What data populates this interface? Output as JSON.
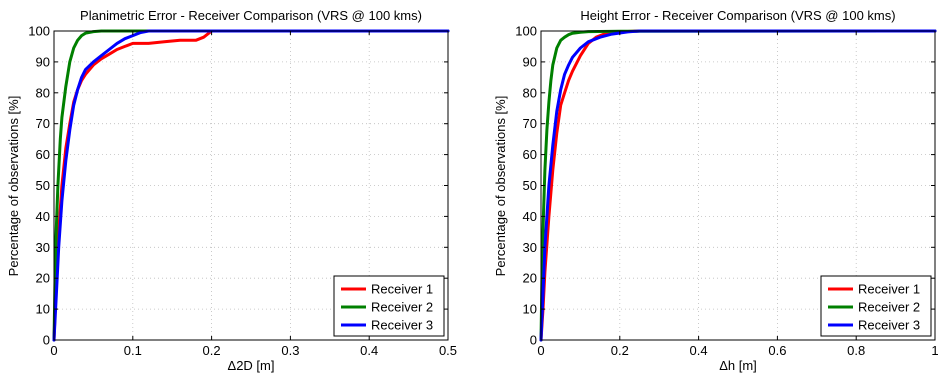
{
  "chart_data": [
    {
      "type": "line",
      "title": "Planimetric Error - Receiver Comparison (VRS @ 100 kms)",
      "xlabel": "Δ2D [m]",
      "ylabel": "Percentage of observations [%]",
      "xlim": [
        0,
        0.5
      ],
      "ylim": [
        0,
        100
      ],
      "xticks": [
        0,
        0.1,
        0.2,
        0.3,
        0.4,
        0.5
      ],
      "xtick_labels": [
        "0",
        "0.1",
        "0.2",
        "0.3",
        "0.4",
        "0.5"
      ],
      "yticks": [
        0,
        10,
        20,
        30,
        40,
        50,
        60,
        70,
        80,
        90,
        100
      ],
      "ytick_labels": [
        "0",
        "10",
        "20",
        "30",
        "40",
        "50",
        "60",
        "70",
        "80",
        "90",
        "100"
      ],
      "grid": true,
      "legend_position": "bottom-right",
      "series": [
        {
          "name": "Receiver 1",
          "color": "#ff0000",
          "x": [
            0,
            0.003,
            0.006,
            0.01,
            0.015,
            0.02,
            0.025,
            0.03,
            0.035,
            0.04,
            0.05,
            0.06,
            0.07,
            0.08,
            0.09,
            0.1,
            0.12,
            0.14,
            0.16,
            0.18,
            0.19,
            0.2,
            0.5
          ],
          "y": [
            0,
            20,
            35,
            50,
            62,
            70,
            77,
            81,
            84,
            86,
            89,
            91,
            92.5,
            94,
            95,
            96,
            96,
            96.5,
            97,
            97,
            98,
            100,
            100
          ]
        },
        {
          "name": "Receiver 2",
          "color": "#008000",
          "x": [
            0,
            0.002,
            0.005,
            0.008,
            0.01,
            0.015,
            0.02,
            0.025,
            0.03,
            0.035,
            0.04,
            0.05,
            0.06,
            0.5
          ],
          "y": [
            0,
            30,
            50,
            65,
            72,
            82,
            90,
            94.5,
            97,
            98.5,
            99.3,
            99.8,
            100,
            100
          ]
        },
        {
          "name": "Receiver 3",
          "color": "#0000ff",
          "x": [
            0,
            0.003,
            0.006,
            0.01,
            0.015,
            0.02,
            0.025,
            0.03,
            0.035,
            0.04,
            0.05,
            0.06,
            0.07,
            0.08,
            0.09,
            0.1,
            0.11,
            0.12,
            0.5
          ],
          "y": [
            0,
            15,
            30,
            45,
            58,
            68,
            76,
            81,
            85,
            87.5,
            90,
            92,
            94,
            96,
            97.5,
            98.5,
            99.5,
            100,
            100
          ]
        }
      ]
    },
    {
      "type": "line",
      "title": "Height Error - Receiver Comparison (VRS @ 100 kms)",
      "xlabel": "Δh [m]",
      "ylabel": "Percentage of observations [%]",
      "xlim": [
        0,
        1
      ],
      "ylim": [
        0,
        100
      ],
      "xticks": [
        0,
        0.2,
        0.4,
        0.6,
        0.8,
        1
      ],
      "xtick_labels": [
        "0",
        "0.2",
        "0.4",
        "0.6",
        "0.8",
        "1"
      ],
      "yticks": [
        0,
        10,
        20,
        30,
        40,
        50,
        60,
        70,
        80,
        90,
        100
      ],
      "ytick_labels": [
        "0",
        "10",
        "20",
        "30",
        "40",
        "50",
        "60",
        "70",
        "80",
        "90",
        "100"
      ],
      "grid": true,
      "legend_position": "bottom-right",
      "series": [
        {
          "name": "Receiver 1",
          "color": "#ff0000",
          "x": [
            0,
            0.005,
            0.01,
            0.02,
            0.03,
            0.04,
            0.05,
            0.06,
            0.07,
            0.08,
            0.1,
            0.12,
            0.14,
            0.16,
            0.2,
            0.25,
            1
          ],
          "y": [
            0,
            10,
            22,
            40,
            55,
            67,
            76,
            80,
            84,
            87,
            92,
            96,
            98,
            99,
            99.7,
            100,
            100
          ]
        },
        {
          "name": "Receiver 2",
          "color": "#008000",
          "x": [
            0,
            0.003,
            0.006,
            0.01,
            0.015,
            0.02,
            0.025,
            0.03,
            0.04,
            0.05,
            0.06,
            0.07,
            0.08,
            0.1,
            0.12,
            0.2,
            0.9,
            1
          ],
          "y": [
            0,
            25,
            40,
            55,
            68,
            77,
            84,
            89,
            94.5,
            97,
            98,
            98.8,
            99.3,
            99.6,
            99.8,
            99.9,
            100,
            100
          ]
        },
        {
          "name": "Receiver 3",
          "color": "#0000ff",
          "x": [
            0,
            0.005,
            0.01,
            0.02,
            0.03,
            0.04,
            0.05,
            0.06,
            0.07,
            0.08,
            0.1,
            0.12,
            0.15,
            0.18,
            0.22,
            0.25,
            1
          ],
          "y": [
            0,
            15,
            30,
            50,
            63,
            74,
            81,
            86,
            89,
            91.5,
            94.5,
            96.5,
            98,
            99,
            99.7,
            100,
            100
          ]
        }
      ]
    }
  ]
}
